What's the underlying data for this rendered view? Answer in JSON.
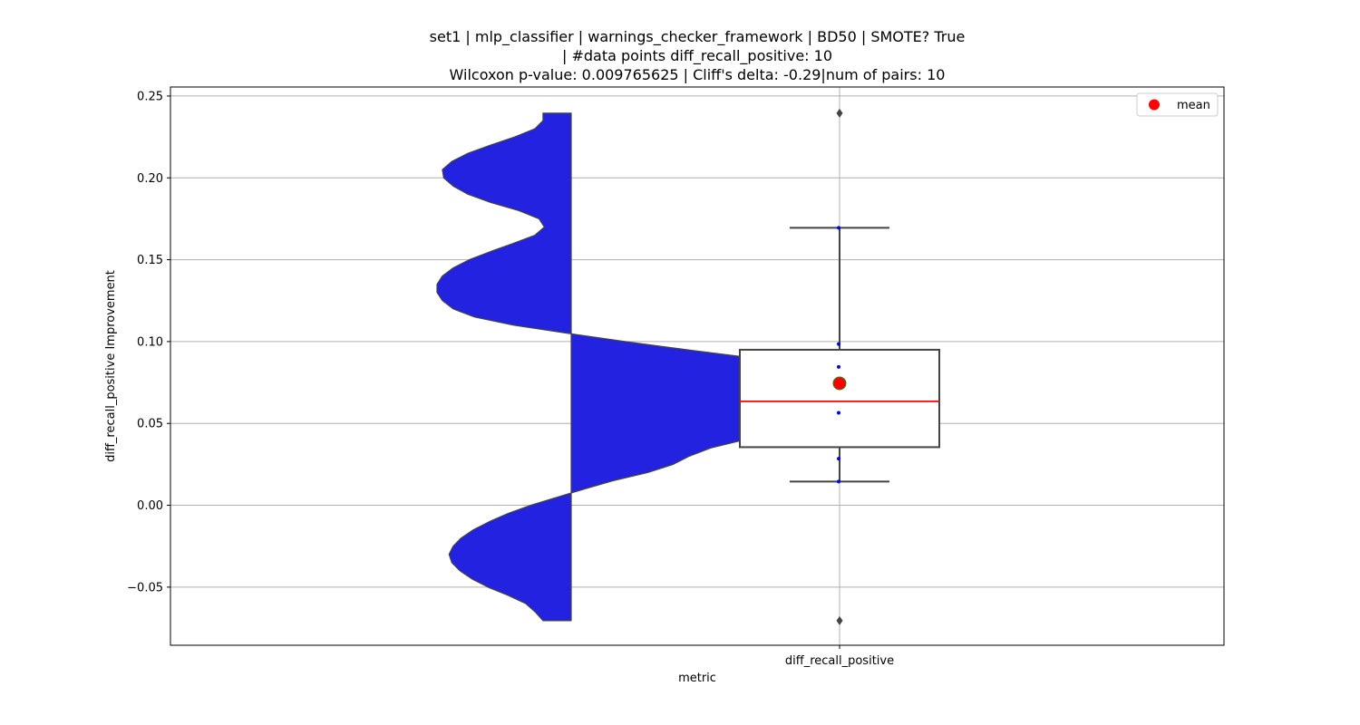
{
  "chart_data": {
    "type": "violin+box",
    "title_lines": [
      "set1 | mlp_classifier | warnings_checker_framework | BD50 | SMOTE? True",
      "| #data points diff_recall_positive: 10",
      "Wilcoxon p-value: 0.009765625 | Cliff's delta: -0.29|num of pairs: 10"
    ],
    "xlabel": "metric",
    "ylabel": "diff_recall_positive Improvement",
    "categories": [
      "diff_recall_positive"
    ],
    "ylim": [
      -0.0855,
      0.2555
    ],
    "yticks": [
      -0.05,
      0.0,
      0.05,
      0.1,
      0.15,
      0.2,
      0.25
    ],
    "ytick_labels": [
      "−0.05",
      "0.00",
      "0.05",
      "0.10",
      "0.15",
      "0.20",
      "0.25"
    ],
    "grid": true,
    "legend": {
      "placement": "top-right",
      "entries": [
        {
          "label": "mean",
          "marker": "circle",
          "color": "#ff0000"
        }
      ]
    },
    "violin": {
      "color": "#2222e0",
      "edge_color": "#444444",
      "y_range": [
        -0.0705,
        0.2395
      ],
      "density_profile": [
        {
          "y": -0.0705,
          "w": 0.21
        },
        {
          "y": -0.065,
          "w": 0.27
        },
        {
          "y": -0.06,
          "w": 0.34
        },
        {
          "y": -0.055,
          "w": 0.47
        },
        {
          "y": -0.05,
          "w": 0.62
        },
        {
          "y": -0.045,
          "w": 0.74
        },
        {
          "y": -0.04,
          "w": 0.83
        },
        {
          "y": -0.035,
          "w": 0.89
        },
        {
          "y": -0.03,
          "w": 0.91
        },
        {
          "y": -0.025,
          "w": 0.88
        },
        {
          "y": -0.02,
          "w": 0.82
        },
        {
          "y": -0.015,
          "w": 0.73
        },
        {
          "y": -0.01,
          "w": 0.61
        },
        {
          "y": -0.005,
          "w": 0.47
        },
        {
          "y": 0.0,
          "w": 0.3
        },
        {
          "y": 0.005,
          "w": 0.1
        },
        {
          "y": 0.01,
          "w": -0.1
        },
        {
          "y": 0.015,
          "w": -0.31
        },
        {
          "y": 0.02,
          "w": -0.57
        },
        {
          "y": 0.025,
          "w": -0.76
        },
        {
          "y": 0.03,
          "w": -0.88
        },
        {
          "y": 0.035,
          "w": -1.04
        },
        {
          "y": 0.04,
          "w": -1.29
        },
        {
          "y": 0.045,
          "w": -1.59
        },
        {
          "y": 0.0495,
          "w": -1.88
        },
        {
          "y": 0.055,
          "w": -2.05
        },
        {
          "y": 0.065,
          "w": -2.2
        },
        {
          "y": 0.075,
          "w": -2.1
        },
        {
          "y": 0.0835,
          "w": -1.88
        },
        {
          "y": 0.09,
          "w": -1.35
        },
        {
          "y": 0.095,
          "w": -0.86
        },
        {
          "y": 0.1,
          "w": -0.4
        },
        {
          "y": 0.105,
          "w": 0.02
        },
        {
          "y": 0.11,
          "w": 0.43
        },
        {
          "y": 0.115,
          "w": 0.72
        },
        {
          "y": 0.12,
          "w": 0.88
        },
        {
          "y": 0.125,
          "w": 0.96
        },
        {
          "y": 0.13,
          "w": 1.0
        },
        {
          "y": 0.135,
          "w": 1.0
        },
        {
          "y": 0.14,
          "w": 0.96
        },
        {
          "y": 0.145,
          "w": 0.88
        },
        {
          "y": 0.15,
          "w": 0.76
        },
        {
          "y": 0.155,
          "w": 0.6
        },
        {
          "y": 0.16,
          "w": 0.43
        },
        {
          "y": 0.165,
          "w": 0.27
        },
        {
          "y": 0.17,
          "w": 0.2
        },
        {
          "y": 0.175,
          "w": 0.24
        },
        {
          "y": 0.18,
          "w": 0.39
        },
        {
          "y": 0.185,
          "w": 0.6
        },
        {
          "y": 0.19,
          "w": 0.77
        },
        {
          "y": 0.195,
          "w": 0.88
        },
        {
          "y": 0.2,
          "w": 0.95
        },
        {
          "y": 0.205,
          "w": 0.96
        },
        {
          "y": 0.21,
          "w": 0.89
        },
        {
          "y": 0.215,
          "w": 0.77
        },
        {
          "y": 0.22,
          "w": 0.6
        },
        {
          "y": 0.225,
          "w": 0.42
        },
        {
          "y": 0.23,
          "w": 0.27
        },
        {
          "y": 0.235,
          "w": 0.21
        },
        {
          "y": 0.2395,
          "w": 0.21
        }
      ]
    },
    "box": {
      "q1": 0.0355,
      "median": 0.0635,
      "q3": 0.095,
      "whisker_low": 0.0145,
      "whisker_high": 0.1695,
      "mean": 0.0745,
      "outliers": [
        -0.0705,
        0.2395
      ],
      "points": [
        0.0145,
        0.0285,
        0.0565,
        0.0845,
        0.0985,
        0.1695
      ],
      "median_color": "#ff0000",
      "mean_color": "#ff0000",
      "mean_edge_color": "#228822",
      "point_color": "#0000ff",
      "line_color": "#444444"
    }
  }
}
